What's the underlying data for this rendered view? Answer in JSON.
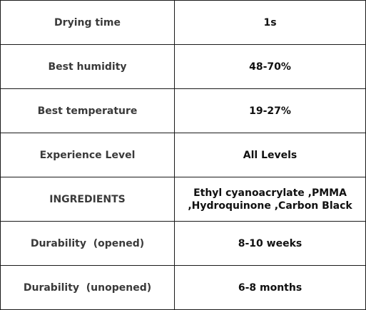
{
  "rows": [
    {
      "label": "Drying time",
      "value": [
        "1s"
      ]
    },
    {
      "label": "Best humidity",
      "value": [
        "48-70%"
      ]
    },
    {
      "label": "Best temperature",
      "value": [
        "19-27%"
      ]
    },
    {
      "label": "Experience Level",
      "value": [
        "All Levels"
      ]
    },
    {
      "label": "INGREDIENTS",
      "value": [
        "Ethyl cyanoacrylate ,PMMA",
        ",Hydroquinone ,Carbon Black"
      ]
    },
    {
      "label": "Durability  (opened)",
      "value": [
        "8-10 weeks"
      ]
    },
    {
      "label": "Durability  (unopened)",
      "value": [
        "6-8 months"
      ]
    }
  ]
}
